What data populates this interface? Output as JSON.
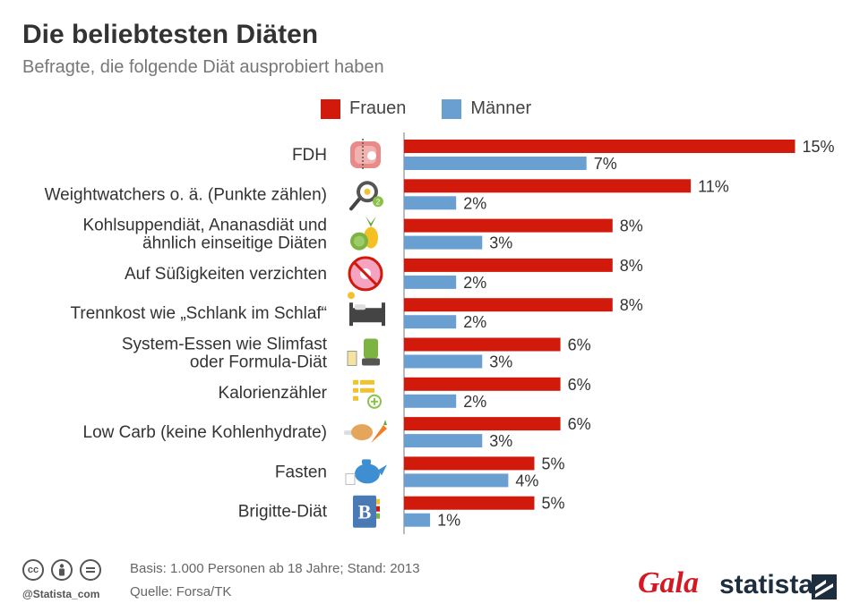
{
  "title": "Die beliebtesten Diäten",
  "subtitle": "Befragte, die folgende Diät ausprobiert haben",
  "colors": {
    "frauen": "#d11a0c",
    "maenner": "#6a9fd2",
    "axis": "#bbbbbb",
    "label": "#333333",
    "value": "#333333"
  },
  "chart_data": {
    "type": "bar",
    "orientation": "horizontal",
    "title": "Die beliebtesten Diäten",
    "subtitle": "Befragte, die folgende Diät ausprobiert haben",
    "unit": "%",
    "xlim": [
      0,
      15
    ],
    "legend_position": "top",
    "categories": [
      [
        "FDH"
      ],
      [
        "Weightwatchers o. ä. (Punkte zählen)"
      ],
      [
        "Kohlsuppendiät, Ananasdiät und",
        "ähnlich einseitige Diäten"
      ],
      [
        "Auf Süßigkeiten verzichten"
      ],
      [
        "Trennkost wie „Schlank im Schlaf“"
      ],
      [
        "System-Essen wie Slimfast",
        "oder Formula-Diät"
      ],
      [
        "Kalorienzähler"
      ],
      [
        "Low Carb (keine Kohlenhydrate)"
      ],
      [
        "Fasten"
      ],
      [
        "Brigitte-Diät"
      ]
    ],
    "icons": [
      "steak-icon",
      "frying-pan-egg-icon",
      "cabbage-pineapple-icon",
      "no-donut-icon",
      "bed-moon-icon",
      "shake-blender-icon",
      "calorie-list-icon",
      "chicken-carrot-icon",
      "teapot-icon",
      "brigitte-book-icon"
    ],
    "series": [
      {
        "name": "Frauen",
        "values": [
          15,
          11,
          8,
          8,
          8,
          6,
          6,
          6,
          5,
          5
        ]
      },
      {
        "name": "Männer",
        "values": [
          7,
          2,
          3,
          2,
          2,
          3,
          2,
          3,
          4,
          1
        ]
      }
    ]
  },
  "footer": {
    "basis": "Basis: 1.000 Personen ab 18 Jahre; Stand: 2013",
    "source": "Quelle: Forsa/TK",
    "handle": "@Statista_com",
    "brand_gala": "Gala",
    "brand_statista": "statista",
    "license_icons": [
      "cc-icon",
      "by-icon",
      "nd-icon"
    ]
  }
}
